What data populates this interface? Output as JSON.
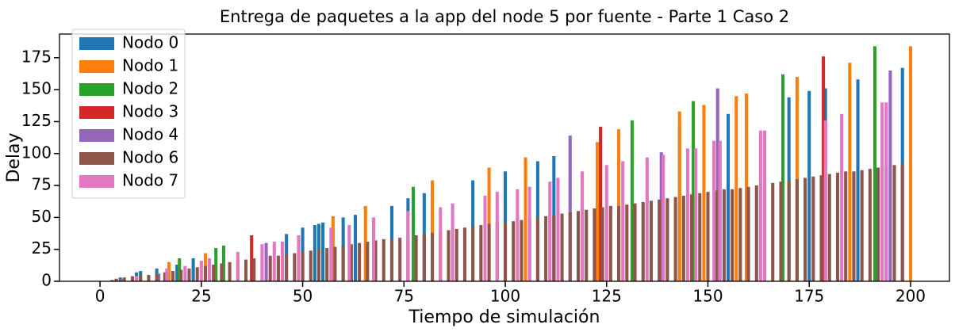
{
  "chart_data": {
    "type": "bar",
    "title": "Entrega de paquetes a la app del node 5 por fuente - Parte 1 Caso 2",
    "xlabel": "Tiempo de simulación",
    "ylabel": "Delay",
    "xlim": [
      -10,
      209.6
    ],
    "ylim": [
      0,
      193.5
    ],
    "xticks": [
      0,
      25,
      50,
      75,
      100,
      125,
      150,
      175,
      200
    ],
    "yticks": [
      0,
      25,
      50,
      75,
      100,
      125,
      150,
      175
    ],
    "bar_width": 0.8,
    "legend": "upper left",
    "series": [
      {
        "name": "Nodo 0",
        "color": "#1f77b4",
        "x": [
          3,
          5,
          9,
          10,
          14,
          19,
          23,
          46,
          50,
          53,
          54,
          55,
          60,
          63,
          72,
          76,
          80,
          92,
          100,
          108,
          112,
          143,
          155,
          170,
          175,
          179,
          187,
          198
        ],
        "values": [
          1,
          3,
          7,
          8,
          10,
          13,
          18,
          37,
          42,
          44,
          45,
          46,
          50,
          52,
          59,
          65,
          69,
          79,
          86,
          94,
          98,
          122,
          131,
          144,
          149,
          151,
          158,
          167
        ]
      },
      {
        "name": "Nodo 1",
        "color": "#ff7f0e",
        "x": [
          17,
          26,
          57.5,
          65.5,
          82,
          96,
          105,
          122.7,
          128,
          143,
          149,
          157,
          159.5,
          172,
          185,
          200
        ],
        "values": [
          15,
          22,
          51,
          59,
          79,
          89,
          97,
          109,
          119,
          133,
          138,
          145,
          147,
          160,
          171,
          184
        ]
      },
      {
        "name": "Nodo 2",
        "color": "#2ca02c",
        "x": [
          19.6,
          28.6,
          30.5,
          77.3,
          131.3,
          146.4,
          168.5,
          191.2
        ],
        "values": [
          18,
          26,
          28,
          74,
          126,
          141,
          162,
          184
        ]
      },
      {
        "name": "Nodo 3",
        "color": "#d62728",
        "x": [
          37.4,
          123.5,
          178.5
        ],
        "values": [
          36,
          121,
          176
        ]
      },
      {
        "name": "Nodo 4",
        "color": "#9467bd",
        "x": [
          5.5,
          14.5,
          41,
          116,
          138.5,
          152.4,
          195
        ],
        "values": [
          2,
          6,
          30,
          114,
          101,
          151,
          165
        ]
      },
      {
        "name": "Nodo 6",
        "color": "#8c564b",
        "x": [
          4,
          6,
          8,
          10,
          12,
          14,
          16,
          18,
          20,
          22,
          24,
          26,
          28,
          30,
          32,
          34,
          36,
          38,
          40,
          42,
          44,
          46,
          48,
          50,
          52,
          54,
          56,
          58,
          60,
          62,
          64,
          66,
          68,
          70,
          72,
          74,
          76,
          78,
          80,
          82,
          84,
          86,
          88,
          90,
          92,
          94,
          96,
          98,
          100,
          102,
          104,
          106,
          108,
          110,
          112,
          114,
          116,
          118,
          120,
          122,
          124,
          126,
          128,
          130,
          132,
          134,
          136,
          138,
          140,
          142,
          144,
          146,
          148,
          150,
          152,
          154,
          156,
          158,
          160,
          162,
          164,
          166,
          168,
          170,
          172,
          174,
          176,
          178,
          180,
          182,
          184,
          186,
          188,
          190,
          192,
          194,
          196,
          198
        ],
        "values": [
          2,
          3,
          4,
          5,
          5,
          6,
          7,
          8,
          9,
          10,
          11,
          12,
          13,
          14,
          15,
          16,
          17,
          18,
          19,
          20,
          20,
          21,
          22,
          23,
          24,
          25,
          26,
          27,
          28,
          29,
          30,
          31,
          32,
          33,
          33,
          34,
          35,
          36,
          37,
          38,
          39,
          40,
          41,
          42,
          43,
          44,
          45,
          46,
          46,
          47,
          48,
          49,
          50,
          51,
          52,
          53,
          54,
          55,
          56,
          57,
          58,
          59,
          59,
          60,
          61,
          62,
          63,
          64,
          65,
          66,
          67,
          68,
          69,
          70,
          71,
          72,
          72,
          73,
          74,
          75,
          76,
          77,
          78,
          79,
          80,
          81,
          82,
          83,
          84,
          85,
          86,
          86,
          87,
          88,
          89,
          90,
          91,
          92
        ]
      },
      {
        "name": "Nodo 7",
        "color": "#e377c2",
        "x": [
          9,
          16.5,
          21,
          25,
          27,
          34,
          40,
          43,
          45,
          49,
          57,
          61.5,
          67.5,
          76,
          84,
          87,
          95,
          98,
          103,
          106,
          111,
          113,
          119,
          125,
          129,
          135,
          139,
          145,
          147,
          151.5,
          153,
          163,
          164,
          179,
          183,
          193,
          194
        ],
        "values": [
          4,
          10,
          12,
          16,
          18,
          23,
          29,
          31,
          31,
          36,
          42,
          44,
          50,
          55,
          58,
          61,
          67,
          70,
          72,
          74,
          78,
          81,
          86,
          91,
          94,
          97,
          99,
          104,
          104,
          110,
          110,
          118,
          118,
          126,
          131,
          140,
          140
        ]
      }
    ]
  }
}
